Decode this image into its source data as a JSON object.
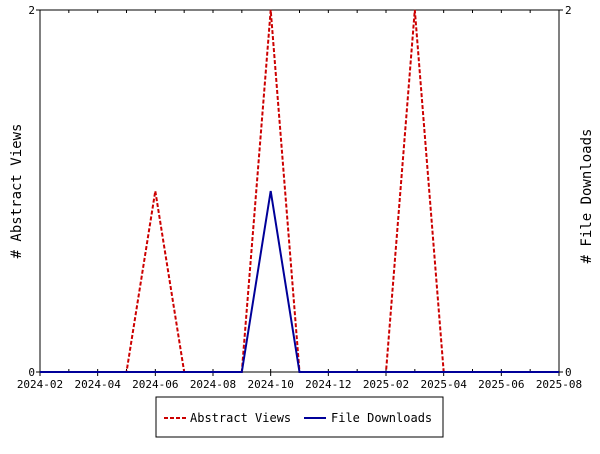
{
  "chart_data": {
    "type": "line",
    "title": "",
    "x": [
      "2024-02",
      "2024-03",
      "2024-04",
      "2024-05",
      "2024-06",
      "2024-07",
      "2024-08",
      "2024-09",
      "2024-10",
      "2024-11",
      "2024-12",
      "2025-01",
      "2025-02",
      "2025-03",
      "2025-04",
      "2025-05",
      "2025-06",
      "2025-07",
      "2025-08"
    ],
    "x_tick_labels": [
      "2024-02",
      "2024-04",
      "2024-06",
      "2024-08",
      "2024-10",
      "2024-12",
      "2025-02",
      "2025-04",
      "2025-06",
      "2025-08"
    ],
    "series": [
      {
        "name": "Abstract Views",
        "axis": "left",
        "color": "#cc0000",
        "dash": true,
        "values": [
          0,
          0,
          0,
          0,
          1,
          0,
          0,
          0,
          2,
          0,
          0,
          0,
          0,
          2,
          0,
          0,
          0,
          0,
          0
        ]
      },
      {
        "name": "File Downloads",
        "axis": "right",
        "color": "#000099",
        "dash": false,
        "values": [
          0,
          0,
          0,
          0,
          0,
          0,
          0,
          0,
          1,
          0,
          0,
          0,
          0,
          0,
          0,
          0,
          0,
          0,
          0
        ]
      }
    ],
    "ylabel_left": "# Abstract Views",
    "ylabel_right": "# File Downloads",
    "ylim_left": [
      0,
      2
    ],
    "ylim_right": [
      0,
      2
    ],
    "y_ticks_left": [
      "0",
      "2"
    ],
    "y_ticks_right": [
      "0",
      "2"
    ],
    "grid": false,
    "legend_position": "bottom-center"
  }
}
